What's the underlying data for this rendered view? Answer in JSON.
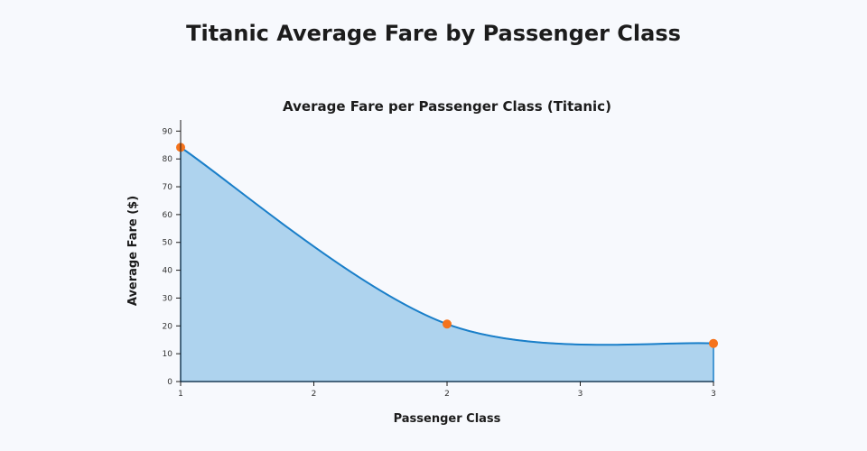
{
  "page_title": "Titanic Average Fare by Passenger Class",
  "chart_data": {
    "type": "area",
    "title": "Average Fare per Passenger Class (Titanic)",
    "xlabel": "Passenger Class",
    "ylabel": "Average Fare ($)",
    "x_ticks": [
      "1",
      "2",
      "2",
      "3",
      "3"
    ],
    "y_ticks": [
      0,
      10,
      20,
      30,
      40,
      50,
      60,
      70,
      80,
      90
    ],
    "ylim": [
      0,
      94
    ],
    "series": [
      {
        "x": [
          1,
          2,
          3
        ],
        "values": [
          84.15,
          20.66,
          13.68
        ]
      }
    ],
    "grid": false,
    "colors": {
      "fill": "#aed3ee",
      "line": "#1a7fc9",
      "marker": "#f5731c"
    }
  }
}
